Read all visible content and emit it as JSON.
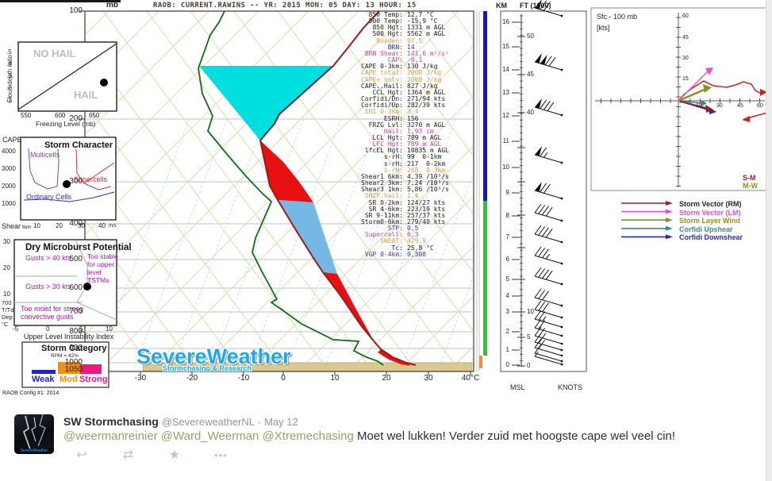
{
  "header": {
    "raob_line": "RAOB:  CURRENT.RAWINS  --  YR: 2015 MON: 05 DAY: 13 HOUR: 15"
  },
  "skewt": {
    "pressure_unit": "mb",
    "pressure_ticks": [
      "100",
      "200",
      "300",
      "400",
      "500",
      "600",
      "700",
      "800",
      "900",
      "1000",
      "1050"
    ],
    "temp_ticks": [
      "-30",
      "-20",
      "-10",
      "0",
      "10",
      "20",
      "30",
      "40°C"
    ],
    "watermark_line1": "SevereWeather",
    "watermark_line2": "Stormchasing & Research"
  },
  "height_panel": {
    "km_label": "KM",
    "ft_label": "FT (1000)",
    "km_ticks": [
      "16",
      "15",
      "14",
      "13",
      "12",
      "11",
      "10",
      "9",
      "8",
      "7",
      "6",
      "5",
      "4",
      "3",
      "2",
      "1",
      "0"
    ],
    "ft_ticks": [
      "50",
      "45",
      "40",
      "10",
      "5",
      "0"
    ],
    "msl_label": "MSL",
    "knots_label": "KNOTS"
  },
  "hodograph": {
    "title": "Sfc - 100 mb",
    "unit": "[kts]",
    "yticks": [
      "60",
      "45",
      "30",
      "15"
    ],
    "xticks": [
      "15",
      "30",
      "45",
      "60"
    ],
    "sm_label": "S-M",
    "mw_label": "M-W",
    "legend": [
      {
        "label": "Storm Vector (RM)",
        "color": "#9b1b30",
        "text_color": "#222222"
      },
      {
        "label": "Storm Vector (LM)",
        "color": "#e24fd0",
        "text_color": "#e24fd0"
      },
      {
        "label": "Storm Layer Wind",
        "color": "#8f8f1f",
        "text_color": "#8f8f1f"
      },
      {
        "label": "Corfidi Upshear",
        "color": "#2e8f8f",
        "text_color": "#2e8f8f"
      },
      {
        "label": "Corfidi Downshear",
        "color": "#2828c8",
        "text_color": "#2828c8"
      }
    ]
  },
  "inset_hail": {
    "no_hail": "NO HAIL",
    "hail": "HAIL",
    "ylabel": "Cloud depth ratio",
    "xlabel": "Freezing Level (mb)",
    "yticks": [
      ".5",
      ".4",
      ".3",
      ".2",
      ".1"
    ],
    "xticks": [
      "550",
      "600",
      "650"
    ]
  },
  "inset_storm": {
    "title": "Storm Character",
    "ylabel": "CAPE",
    "yticks": [
      "4000",
      "3000",
      "2000",
      "1000"
    ],
    "xlabel": "Shear",
    "xsub": "6km",
    "xunit": "m/s",
    "xticks": [
      "10",
      "20",
      "30",
      "40"
    ],
    "line_multicells": "Multicells",
    "line_supercells": "Supercells",
    "line_ordinary": "Ordinary Cells"
  },
  "inset_micro": {
    "title": "Dry Microburst Potential",
    "yticks": [
      "30",
      "20",
      "10"
    ],
    "ylabel_lines": [
      "700",
      "T/Td",
      "Dep",
      "°C"
    ],
    "xticks": [
      "-5",
      "0",
      "5",
      "10"
    ],
    "xlabel": "Upper Level Instability Index",
    "zone_gust40": "Gusts > 40 kts",
    "zone_gust30": "Gusts > 30 kts",
    "zone_stable1": "Too stable",
    "zone_stable2": "for upper",
    "zone_stable3": "level",
    "zone_stable4": "TSTMs",
    "zone_moist1": "Too moist for strong",
    "zone_moist2": "convective gusts"
  },
  "inset_category": {
    "title": "Storm Category",
    "subtitle": "RPM = 42%",
    "weak": "Weak",
    "mod": "Mod",
    "strong": "Strong",
    "weak_color": "#2222cc",
    "mod_color": "#f09010",
    "strong_color": "#f01880",
    "footer": "RAOB Config #1: 2014"
  },
  "tweet": {
    "name": "SW Stormchasing",
    "handle": "@SevereweatherNL",
    "separator": "·",
    "date": "May 12",
    "mention1": "@weermanreinier",
    "mention2": "@Ward_Weerman",
    "mention3": "@Xtremechasing",
    "text": " Moet wel lukken! Verder zuid met hoogste cape wel veel cin!",
    "avatar_caption": "SevereWeather",
    "reply_icon": "↩",
    "retweet_icon": "⇄",
    "favorite_icon": "★",
    "more_icon": "•••"
  },
  "chart_data": {
    "type": "skewt_sounding",
    "title": "RAOB CURRENT.RAWINS 2015-05-13 15Z",
    "pressure_axis_mb": [
      100,
      200,
      300,
      400,
      500,
      600,
      700,
      800,
      900,
      1000,
      1050
    ],
    "temp_axis_c": [
      -30,
      -20,
      -10,
      0,
      10,
      20,
      30,
      40
    ],
    "indices": [
      {
        "label": "850 Temp:",
        "value": "12,7 °C",
        "cls": "k"
      },
      {
        "label": "500 Temp:",
        "value": "-15,9 °C",
        "cls": "k"
      },
      {
        "label": "850 Hgt:",
        "value": "1331 m AGL",
        "cls": "k"
      },
      {
        "label": "500 Hgt:",
        "value": "5562 m AGL",
        "cls": "k"
      },
      {
        "label": "Boyden:",
        "value": "97,5",
        "cls": "o"
      },
      {
        "label": "BRN:",
        "value": "14",
        "cls": "b"
      },
      {
        "label": "BRN Shear:",
        "value": "141,6 m²/s²",
        "cls": "m"
      },
      {
        "label": "CAP:",
        "value": "-0,1",
        "cls": "m"
      },
      {
        "label": "CAPE 0-3km:",
        "value": "130 J/kg",
        "cls": "k"
      },
      {
        "label": "CAPE total:",
        "value": "2008 J/kg",
        "cls": "o"
      },
      {
        "label": "CAPE+ only:",
        "value": "2008 J/kg",
        "cls": "o"
      },
      {
        "label": "CAPE..Hail:",
        "value": "827 J/kg",
        "cls": "k"
      },
      {
        "label": "CCL Hgt:",
        "value": "1364 m AGL",
        "cls": "k"
      },
      {
        "label": "Corfidi/Dn:",
        "value": "271/94 kts",
        "cls": "k"
      },
      {
        "label": "Corfidi/Up:",
        "value": "282/39 kts",
        "cls": "k"
      },
      {
        "label": "EHI 0-3km:",
        "value": "3,4",
        "cls": "o"
      },
      {
        "label": "ESRH:",
        "value": "156",
        "cls": "k"
      },
      {
        "label": "FRZG Lvl:",
        "value": "3270 m AGL",
        "cls": "k"
      },
      {
        "label": "Hail:",
        "value": "1,93 cm",
        "cls": "m"
      },
      {
        "label": "LCL Hgt:",
        "value": "789 m AGL",
        "cls": "k"
      },
      {
        "label": "LFC Hgt:",
        "value": "789 m AGL",
        "cls": "m"
      },
      {
        "label": "lfcEL Hgt:",
        "value": "10835 m AGL",
        "cls": "k"
      },
      {
        "label": "s-rH:",
        "value": "99  0-1km",
        "cls": "k"
      },
      {
        "label": "s-rH:",
        "value": "217  0-2km",
        "cls": "k"
      },
      {
        "label": "s-rH:",
        "value": "268  0-3km",
        "cls": "o"
      },
      {
        "label": "Shear1 6km:",
        "value": "4,39 /10³/s",
        "cls": "k"
      },
      {
        "label": "Shear2 3km:",
        "value": "7,24 /10³/s",
        "cls": "k"
      },
      {
        "label": "Shear3 1km:",
        "value": "5,86 /10³/s",
        "cls": "k"
      },
      {
        "label": "SHIP.hail:",
        "value": "1,4",
        "cls": "o"
      },
      {
        "label": "SR 0-2km:",
        "value": "124/27 kts",
        "cls": "k"
      },
      {
        "label": "SR 4-6km:",
        "value": "223/19 kts",
        "cls": "k"
      },
      {
        "label": "SR 9-11km:",
        "value": "257/37 kts",
        "cls": "k"
      },
      {
        "label": "Storm0-6km:",
        "value": "279/40 kts",
        "cls": "k"
      },
      {
        "label": "STP:",
        "value": "0,5",
        "cls": "b"
      },
      {
        "label": "Supercell:",
        "value": "6,3",
        "cls": "m"
      },
      {
        "label": "SWEAT:",
        "value": "429,9",
        "cls": "o"
      },
      {
        "label": "Tc:",
        "value": "25,8 °C",
        "cls": "k"
      },
      {
        "label": "VGP 0-4km:",
        "value": "0,308",
        "cls": "b"
      }
    ],
    "hail_chart_point": {
      "freezing_level_mb": 668,
      "cloud_depth_ratio": 0.29
    },
    "storm_character_point": {
      "shear_ms": 23,
      "cape": 2000
    },
    "microburst_point": {
      "upper_level_instability_index": 6,
      "t_td_dep_c": 13
    },
    "storm_category_rpm_pct": 42,
    "fill_colors": {
      "cape_upper": "#00dfdf",
      "cape_red": "#e81010",
      "cape_mid_blue": "#74b9e6",
      "ground_band": "#d8ca8e"
    },
    "line_colors": {
      "temperature": "#a01818",
      "dewpoint": "#0e6e14"
    }
  }
}
